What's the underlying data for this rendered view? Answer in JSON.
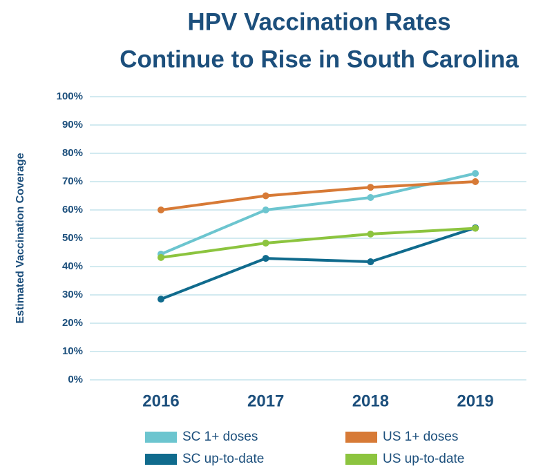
{
  "chart_data": {
    "type": "line",
    "title": [
      "HPV Vaccination Rates",
      "Continue to Rise in South Carolina"
    ],
    "y_label": "Estimated Vaccination Coverage",
    "categories": [
      "2016",
      "2017",
      "2018",
      "2019"
    ],
    "series": [
      {
        "name": "SC 1+ doses",
        "color": "#6cc5cf",
        "values": [
          44.4,
          60,
          64.4,
          72.9
        ]
      },
      {
        "name": "US 1+ doses",
        "color": "#d77a36",
        "values": [
          60,
          65,
          68,
          70
        ]
      },
      {
        "name": "SC up-to-date",
        "color": "#106b8d",
        "values": [
          28.5,
          42.9,
          41.7,
          53.7
        ]
      },
      {
        "name": "US up-to-date",
        "color": "#8cc43f",
        "values": [
          43.2,
          48.3,
          51.5,
          53.5
        ]
      }
    ],
    "ylim": [
      0,
      100
    ],
    "yticks": [
      {
        "value": 0,
        "label": "0%"
      },
      {
        "value": 10,
        "label": "10%"
      },
      {
        "value": 20,
        "label": "20%"
      },
      {
        "value": 30,
        "label": "30%"
      },
      {
        "value": 40,
        "label": "40%"
      },
      {
        "value": 50,
        "label": "50%"
      },
      {
        "value": 60,
        "label": "60%"
      },
      {
        "value": 70,
        "label": "70%"
      },
      {
        "value": 80,
        "label": "80%"
      },
      {
        "value": 90,
        "label": "90%"
      },
      {
        "value": 100,
        "label": "100%"
      }
    ],
    "grid": true
  }
}
